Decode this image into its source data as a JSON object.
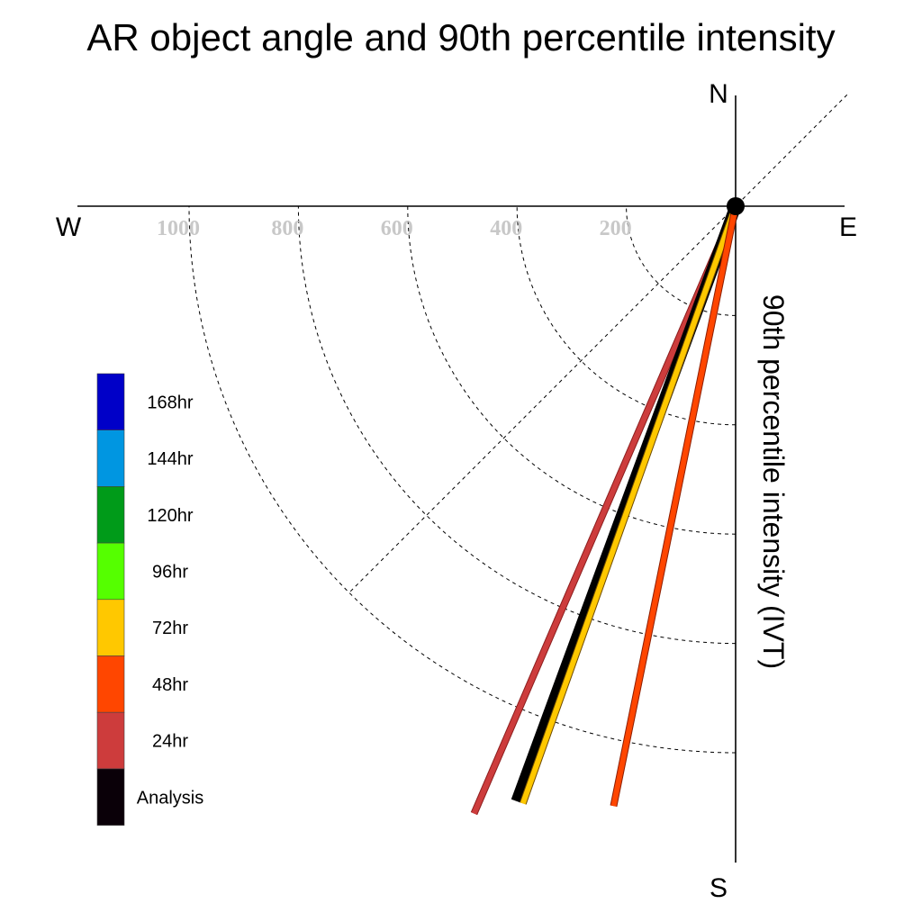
{
  "chart_data": {
    "type": "polar",
    "title": "AR object angle and 90th percentile intensity",
    "radial_label": "90th percentile intensity (IVT)",
    "compass": {
      "north": "N",
      "south": "S",
      "east": "E",
      "west": "W"
    },
    "radial_ticks": [
      200,
      400,
      600,
      800,
      1000
    ],
    "radial_tick_labels": [
      "200",
      "400",
      "600",
      "800",
      "1000"
    ],
    "rlim": [
      0,
      1200
    ],
    "grid": true,
    "legend_position": "left",
    "legend": [
      {
        "label": "168hr",
        "color": "#0000c8"
      },
      {
        "label": "144hr",
        "color": "#0096e1"
      },
      {
        "label": "120hr",
        "color": "#009b19"
      },
      {
        "label": "96hr",
        "color": "#55ff00"
      },
      {
        "label": "72hr",
        "color": "#ffc800"
      },
      {
        "label": "48hr",
        "color": "#ff4600"
      },
      {
        "label": "24hr",
        "color": "#cd3c3c"
      },
      {
        "label": "Analysis",
        "color": "#0a0008"
      }
    ],
    "series": [
      {
        "name": "24hr",
        "angle_deg": 203.3,
        "intensity": 1210,
        "color": "#cd3c3c",
        "edge": "#8c1e1e",
        "width": 6
      },
      {
        "name": "Analysis",
        "angle_deg": 200.2,
        "intensity": 1160,
        "color": "#000000",
        "edge": "#000000",
        "width": 11
      },
      {
        "name": "72hr",
        "angle_deg": 199.6,
        "intensity": 1160,
        "color": "#ffc800",
        "edge": "#6e4b00",
        "width": 6
      },
      {
        "name": "48hr",
        "angle_deg": 191.5,
        "intensity": 1120,
        "color": "#ff4600",
        "edge": "#8c1e00",
        "width": 6
      }
    ]
  }
}
